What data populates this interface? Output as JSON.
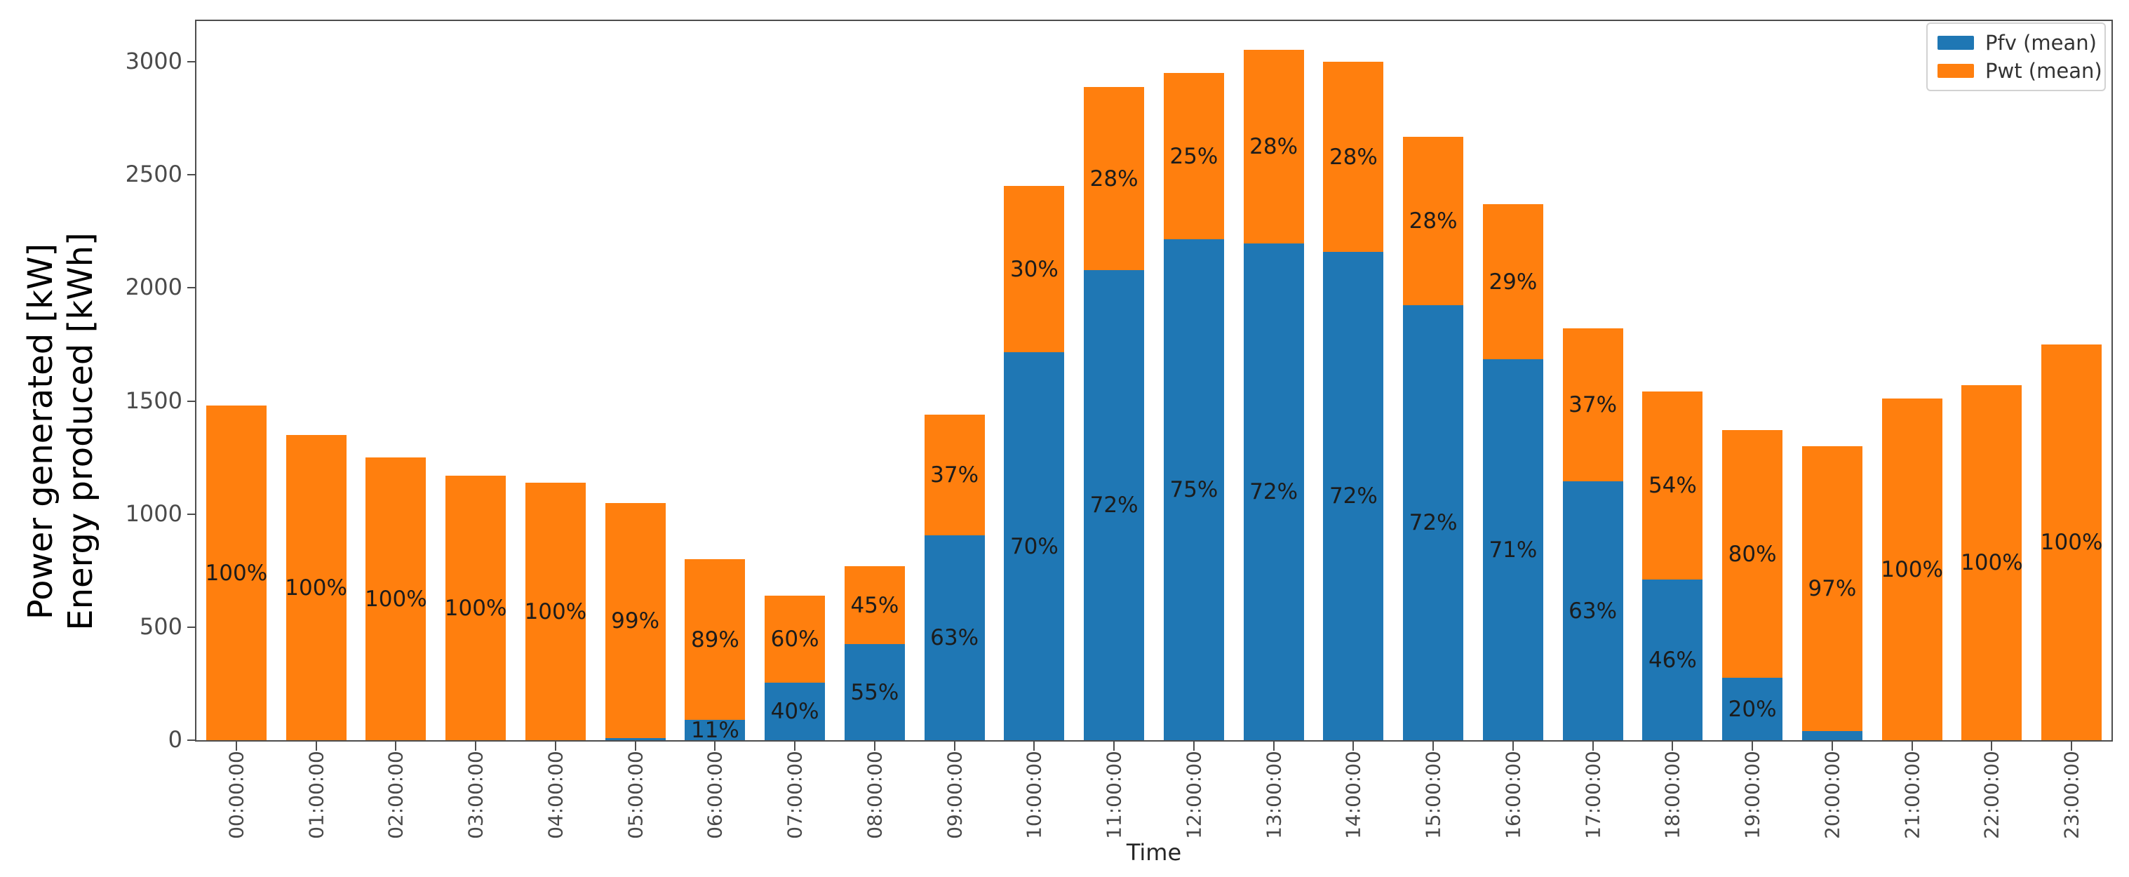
{
  "figure": {
    "background": "#ffffff",
    "axis_color": "#4d4d4d"
  },
  "chart_data": {
    "type": "bar",
    "stacked": true,
    "title": "",
    "xlabel": "Time",
    "ylabel_lines": [
      "Power generated [kW]",
      "Energy produced [kWh]"
    ],
    "categories": [
      "00:00:00",
      "01:00:00",
      "02:00:00",
      "03:00:00",
      "04:00:00",
      "05:00:00",
      "06:00:00",
      "07:00:00",
      "08:00:00",
      "09:00:00",
      "10:00:00",
      "11:00:00",
      "12:00:00",
      "13:00:00",
      "14:00:00",
      "15:00:00",
      "16:00:00",
      "17:00:00",
      "18:00:00",
      "19:00:00",
      "20:00:00",
      "21:00:00",
      "22:00:00",
      "23:00:00"
    ],
    "series": [
      {
        "name": "Pfv (mean)",
        "color": "#1f77b4",
        "values": [
          0,
          0,
          0,
          0,
          0,
          10,
          90,
          255,
          425,
          905,
          1715,
          2080,
          2215,
          2195,
          2160,
          1925,
          1685,
          1145,
          710,
          275,
          40,
          0,
          0,
          0
        ],
        "labels": [
          "",
          "",
          "",
          "",
          "",
          "",
          "11%",
          "40%",
          "55%",
          "63%",
          "70%",
          "72%",
          "75%",
          "72%",
          "72%",
          "72%",
          "71%",
          "63%",
          "46%",
          "20%",
          "",
          "",
          "",
          ""
        ]
      },
      {
        "name": "Pwt (mean)",
        "color": "#ff7f0e",
        "values": [
          1480,
          1350,
          1250,
          1170,
          1140,
          1040,
          710,
          385,
          345,
          535,
          735,
          810,
          735,
          855,
          840,
          745,
          685,
          675,
          830,
          1095,
          1260,
          1510,
          1570,
          1750
        ],
        "labels": [
          "100%",
          "100%",
          "100%",
          "100%",
          "100%",
          "99%",
          "89%",
          "60%",
          "45%",
          "37%",
          "30%",
          "28%",
          "25%",
          "28%",
          "28%",
          "28%",
          "29%",
          "37%",
          "54%",
          "80%",
          "97%",
          "100%",
          "100%",
          "100%"
        ]
      }
    ],
    "ylim": [
      0,
      3180
    ],
    "yticks": [
      0,
      500,
      1000,
      1500,
      2000,
      2500,
      3000
    ],
    "grid": false,
    "legend": {
      "position": "upper right",
      "entries": [
        "Pfv (mean)",
        "Pwt (mean)"
      ]
    },
    "label_color": "#1c1c1c"
  }
}
